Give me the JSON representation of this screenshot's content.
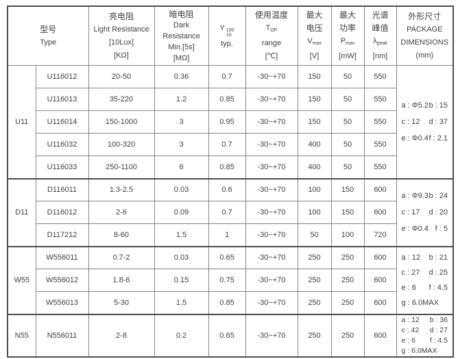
{
  "header": {
    "type": {
      "zh": "型号",
      "en": "Type"
    },
    "light_resistance": {
      "zh": "亮电阻",
      "en": "Light Resistance",
      "cond": "[10Lux]",
      "unit": "[KΩ]"
    },
    "dark_resistance": {
      "zh": "暗电阻",
      "en1": "Dark",
      "en2": "Resistance",
      "cond": "Min.[5s]",
      "unit": "[MΩ]"
    },
    "gamma": {
      "symbol": "Y",
      "sup": "100",
      "sub": "10",
      "label": "typ."
    },
    "temperature": {
      "zh": "使用温度",
      "symbol": "T",
      "sub": "OP",
      "en": "range",
      "unit": "[℃]"
    },
    "max_voltage": {
      "zh1": "最大",
      "zh2": "电压",
      "symbol": "V",
      "sub": "max",
      "unit": "[V]"
    },
    "max_power": {
      "zh1": "最大",
      "zh2": "功率",
      "symbol": "P",
      "sub": "max",
      "unit": "[mW]"
    },
    "spectral_peak": {
      "zh1": "光谱",
      "zh2": "峰值",
      "symbol": "λ",
      "sub": "peak",
      "unit": "[nm]"
    },
    "package": {
      "zh": "外形尺寸",
      "en1": "PACKAGE",
      "en2": "DIMENSIONS",
      "unit": "(mm)"
    }
  },
  "groups": [
    {
      "type": "U11",
      "rows": [
        [
          "U116012",
          "20-50",
          "0.36",
          "0.7",
          "-30~+70",
          "150",
          "50",
          "550"
        ],
        [
          "U116013",
          "35-220",
          "1.2",
          "0.85",
          "-30~+70",
          "150",
          "50",
          "550"
        ],
        [
          "U116014",
          "150-1000",
          "3",
          "0.95",
          "-30~+70",
          "150",
          "50",
          "550"
        ],
        [
          "U116032",
          "100-320",
          "3",
          "0.7",
          "-30~+70",
          "400",
          "50",
          "550"
        ],
        [
          "U116033",
          "250-1100",
          "6",
          "0.85",
          "-30~+70",
          "400",
          "50",
          "550"
        ]
      ],
      "package": [
        {
          "left": "a : Φ5.2",
          "right": "b : 15"
        },
        {
          "left": "c : 12",
          "right": "d : 37"
        },
        {
          "left": "e : Φ0.4",
          "right": "f : 2.1"
        }
      ]
    },
    {
      "type": "D11",
      "rows": [
        [
          "D116011",
          "1.3-2.5",
          "0.03",
          "0.6",
          "-30~+70",
          "100",
          "150",
          "600"
        ],
        [
          "D116012",
          "2-6",
          "0.09",
          "0.7",
          "-30~+70",
          "100",
          "150",
          "600"
        ],
        [
          "D117212",
          "8-60",
          "1.5",
          "1",
          "-30~+70",
          "50",
          "100",
          "720"
        ]
      ],
      "package": [
        {
          "left": "a : Φ9.3",
          "right": "b : 24"
        },
        {
          "left": "c : 17",
          "right": "d : 20"
        },
        {
          "left": "e : Φ0.4",
          "right": "f : 5"
        }
      ]
    },
    {
      "type": "W55",
      "rows": [
        [
          "W556011",
          "0.7-2",
          "0.03",
          "0.65",
          "-30~+70",
          "250",
          "250",
          "600"
        ],
        [
          "W556012",
          "1.8-6",
          "0.15",
          "0.75",
          "-30~+70",
          "250",
          "250",
          "600"
        ],
        [
          "W556013",
          "5-30",
          "1.5",
          "0.85",
          "-30~+70",
          "250",
          "250",
          "600"
        ]
      ],
      "package": [
        {
          "left": "a : 12",
          "right": "b : 21"
        },
        {
          "left": "c : 27",
          "right": "d : 25"
        },
        {
          "left": "e : 6",
          "right": "f : 4.5"
        },
        {
          "left": "g : 6.0MAX",
          "right": ""
        }
      ]
    },
    {
      "type": "N55",
      "rows": [
        [
          "N556011",
          "2-8",
          "0.2",
          "0.65",
          "-30~+70",
          "250",
          "250",
          "600"
        ]
      ],
      "package": [
        {
          "left": "a : 12",
          "right": "b : 36"
        },
        {
          "left": "c : 42",
          "right": "d : 27"
        },
        {
          "left": "e : 6",
          "right": "f : 4.5"
        },
        {
          "left": "g : 6.0MAX",
          "right": ""
        }
      ]
    }
  ]
}
